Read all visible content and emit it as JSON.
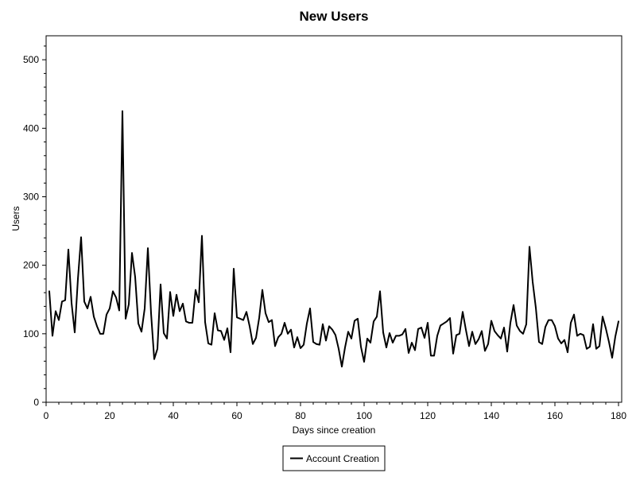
{
  "chart_data": {
    "type": "line",
    "title": "New Users",
    "xlabel": "Days since creation",
    "ylabel": "Users",
    "xlim": [
      0,
      181
    ],
    "ylim": [
      0,
      535
    ],
    "xticks": [
      0,
      20,
      40,
      60,
      80,
      100,
      120,
      140,
      160,
      180
    ],
    "yticks": [
      0,
      100,
      200,
      300,
      400,
      500
    ],
    "grid": false,
    "legend_position": "bottom",
    "series": [
      {
        "name": "Account Creation",
        "color": "#000000",
        "x": [
          1,
          2,
          3,
          4,
          5,
          6,
          7,
          8,
          9,
          10,
          11,
          12,
          13,
          14,
          15,
          16,
          17,
          18,
          19,
          20,
          21,
          22,
          23,
          24,
          25,
          26,
          27,
          28,
          29,
          30,
          31,
          32,
          33,
          34,
          35,
          36,
          37,
          38,
          39,
          40,
          41,
          42,
          43,
          44,
          45,
          46,
          47,
          48,
          49,
          50,
          51,
          52,
          53,
          54,
          55,
          56,
          57,
          58,
          59,
          60,
          61,
          62,
          63,
          64,
          65,
          66,
          67,
          68,
          69,
          70,
          71,
          72,
          73,
          74,
          75,
          76,
          77,
          78,
          79,
          80,
          81,
          82,
          83,
          84,
          85,
          86,
          87,
          88,
          89,
          90,
          91,
          92,
          93,
          94,
          95,
          96,
          97,
          98,
          99,
          100,
          101,
          102,
          103,
          104,
          105,
          106,
          107,
          108,
          109,
          110,
          111,
          112,
          113,
          114,
          115,
          116,
          117,
          118,
          119,
          120,
          121,
          122,
          123,
          124,
          125,
          126,
          127,
          128,
          129,
          130,
          131,
          132,
          133,
          134,
          135,
          136,
          137,
          138,
          139,
          140,
          141,
          142,
          143,
          144,
          145,
          146,
          147,
          148,
          149,
          150,
          151,
          152,
          153,
          154,
          155,
          156,
          157,
          158,
          159,
          160,
          161,
          162,
          163,
          164,
          165,
          166,
          167,
          168,
          169,
          170,
          171,
          172,
          173,
          174,
          175,
          176,
          177,
          178,
          179,
          180
        ],
        "y": [
          162,
          97,
          133,
          120,
          147,
          149,
          223,
          145,
          102,
          180,
          241,
          147,
          137,
          154,
          125,
          111,
          100,
          100,
          128,
          137,
          162,
          153,
          134,
          425,
          122,
          143,
          218,
          183,
          115,
          103,
          137,
          225,
          130,
          63,
          78,
          172,
          101,
          93,
          161,
          126,
          157,
          133,
          144,
          118,
          116,
          116,
          164,
          146,
          243,
          117,
          86,
          84,
          130,
          105,
          104,
          91,
          108,
          73,
          195,
          124,
          122,
          120,
          132,
          111,
          85,
          94,
          123,
          164,
          130,
          117,
          120,
          82,
          95,
          100,
          116,
          100,
          106,
          80,
          95,
          79,
          84,
          115,
          137,
          88,
          85,
          84,
          114,
          90,
          111,
          106,
          98,
          78,
          52,
          80,
          103,
          93,
          119,
          122,
          81,
          59,
          93,
          87,
          118,
          125,
          162,
          102,
          80,
          101,
          87,
          97,
          97,
          99,
          107,
          72,
          87,
          76,
          107,
          109,
          94,
          116,
          68,
          68,
          97,
          112,
          115,
          118,
          123,
          71,
          98,
          100,
          132,
          106,
          82,
          103,
          85,
          92,
          104,
          75,
          85,
          119,
          104,
          98,
          93,
          109,
          74,
          116,
          142,
          112,
          104,
          100,
          114,
          227,
          176,
          138,
          88,
          85,
          110,
          120,
          120,
          111,
          93,
          86,
          91,
          73,
          116,
          128,
          97,
          100,
          98,
          78,
          81,
          114,
          78,
          82,
          125,
          108,
          88,
          65,
          96,
          118
        ]
      }
    ]
  }
}
